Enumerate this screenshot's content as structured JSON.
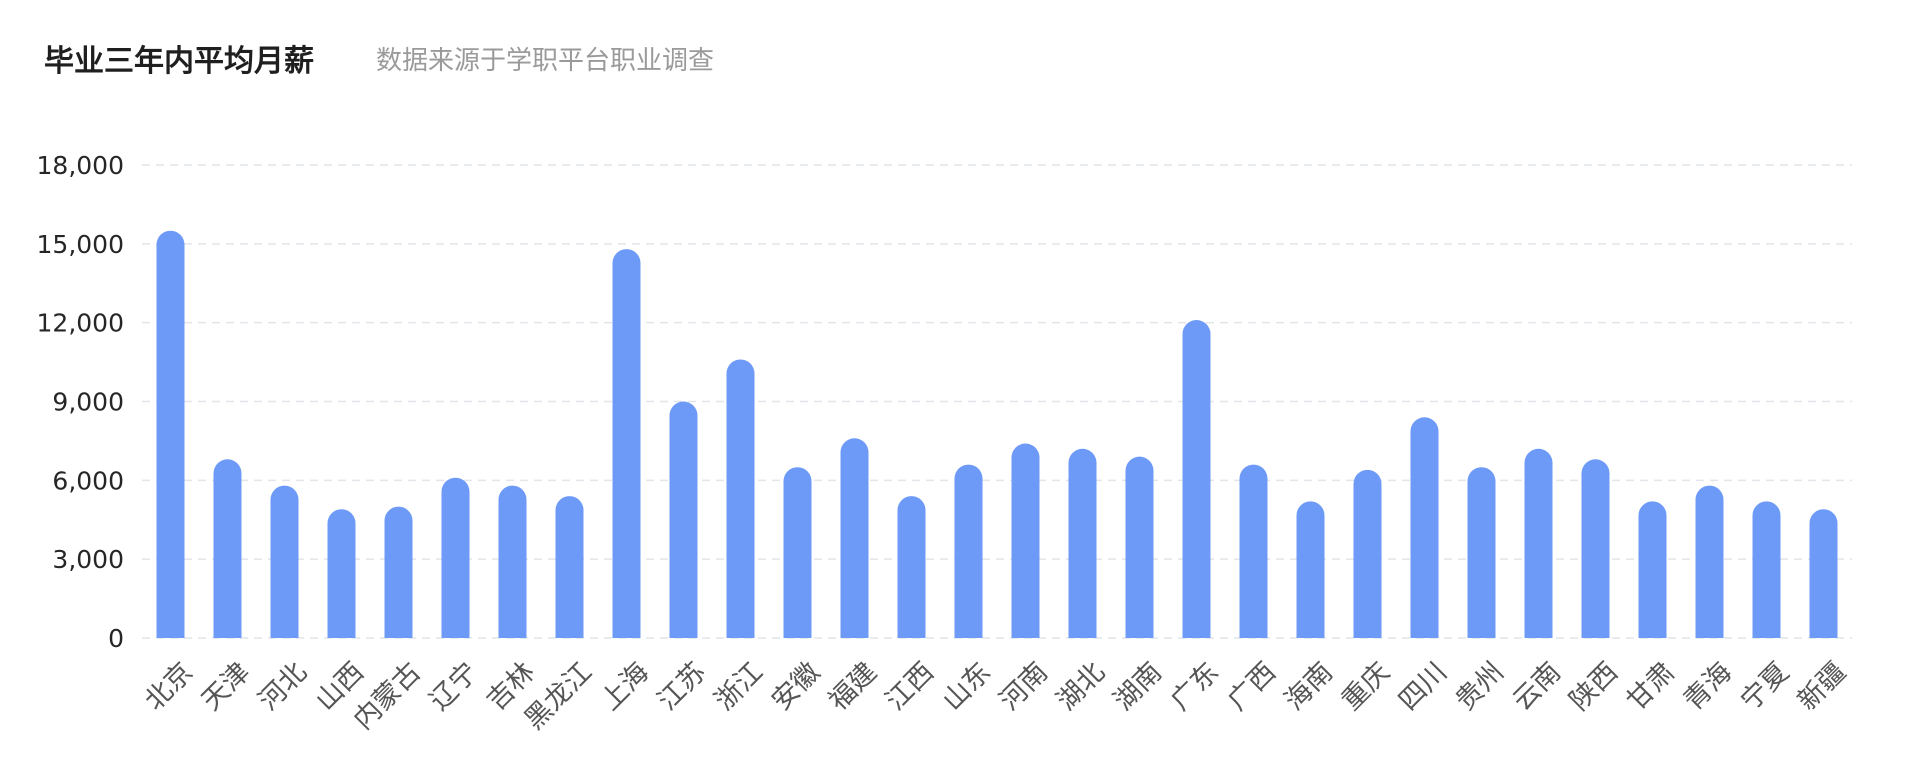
{
  "chart_data": {
    "type": "bar",
    "title": "毕业三年内平均月薪",
    "subtitle": "数据来源于学职平台职业调查",
    "xlabel": "",
    "ylabel": "",
    "ylim": [
      0,
      18000
    ],
    "yticks": [
      0,
      3000,
      6000,
      9000,
      12000,
      15000,
      18000
    ],
    "ytick_labels": [
      "0",
      "3,000",
      "6,000",
      "9,000",
      "12,000",
      "15,000",
      "18,000"
    ],
    "grid": true,
    "bar_color": "#6e9af7",
    "categories": [
      "北京",
      "天津",
      "河北",
      "山西",
      "内蒙古",
      "辽宁",
      "吉林",
      "黑龙江",
      "上海",
      "江苏",
      "浙江",
      "安徽",
      "福建",
      "江西",
      "山东",
      "河南",
      "湖北",
      "湖南",
      "广东",
      "广西",
      "海南",
      "重庆",
      "四川",
      "贵州",
      "云南",
      "陕西",
      "甘肃",
      "青海",
      "宁夏",
      "新疆"
    ],
    "values": [
      15500,
      6800,
      5800,
      4900,
      5000,
      6100,
      5800,
      5400,
      14800,
      9000,
      10600,
      6500,
      7600,
      5400,
      6600,
      7400,
      7200,
      6900,
      12100,
      6600,
      5200,
      6400,
      8400,
      6500,
      7200,
      6800,
      5200,
      5800,
      5200,
      4900
    ]
  }
}
